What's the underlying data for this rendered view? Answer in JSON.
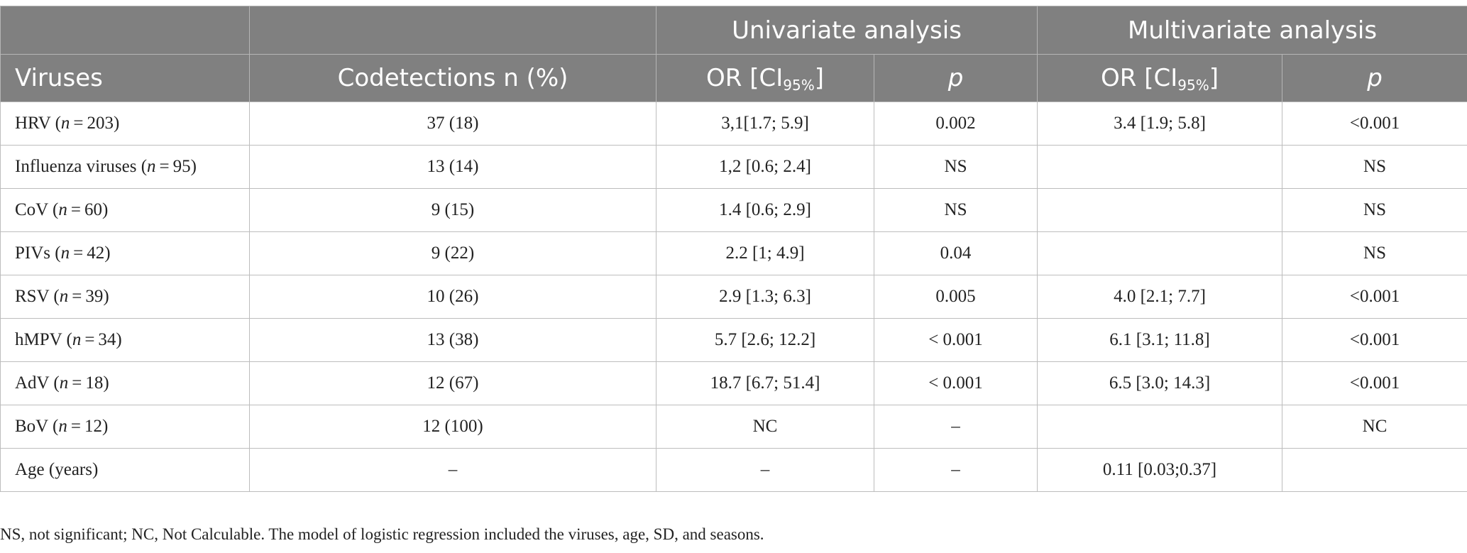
{
  "table": {
    "group_headers": {
      "univariate": "Univariate analysis",
      "multivariate": "Multivariate analysis"
    },
    "column_headers": {
      "viruses": "Viruses",
      "codetections": "Codetections n (%)",
      "or_prefix": "OR [CI",
      "ci_sub": "95%",
      "or_suffix": "]",
      "p": "p"
    },
    "rows": [
      {
        "name": "HRV (",
        "n_var": "n",
        "n_value": " = 203)",
        "codetections": "37 (18)",
        "uni_or": "3,1[1.7; 5.9]",
        "uni_p": "0.002",
        "multi_or": "3.4 [1.9; 5.8]",
        "multi_p": "<0.001"
      },
      {
        "name": "Influenza viruses (",
        "n_var": "n",
        "n_value": " = 95)",
        "codetections": "13 (14)",
        "uni_or": "1,2 [0.6; 2.4]",
        "uni_p": "NS",
        "multi_or": "",
        "multi_p": "NS"
      },
      {
        "name": "CoV (",
        "n_var": "n",
        "n_value": " = 60)",
        "codetections": "9 (15)",
        "uni_or": "1.4 [0.6; 2.9]",
        "uni_p": "NS",
        "multi_or": "",
        "multi_p": "NS"
      },
      {
        "name": "PIVs (",
        "n_var": "n",
        "n_value": " = 42)",
        "codetections": "9 (22)",
        "uni_or": "2.2 [1; 4.9]",
        "uni_p": "0.04",
        "multi_or": "",
        "multi_p": "NS"
      },
      {
        "name": "RSV (",
        "n_var": "n",
        "n_value": " = 39)",
        "codetections": "10 (26)",
        "uni_or": "2.9 [1.3; 6.3]",
        "uni_p": "0.005",
        "multi_or": "4.0 [2.1; 7.7]",
        "multi_p": "<0.001"
      },
      {
        "name": "hMPV (",
        "n_var": "n",
        "n_value": " = 34)",
        "codetections": "13 (38)",
        "uni_or": "5.7 [2.6; 12.2]",
        "uni_p": "< 0.001",
        "multi_or": "6.1 [3.1; 11.8]",
        "multi_p": "<0.001"
      },
      {
        "name": "AdV (",
        "n_var": "n",
        "n_value": " = 18)",
        "codetections": "12 (67)",
        "uni_or": "18.7 [6.7; 51.4]",
        "uni_p": "< 0.001",
        "multi_or": "6.5 [3.0; 14.3]",
        "multi_p": "<0.001"
      },
      {
        "name": "BoV (",
        "n_var": "n",
        "n_value": " = 12)",
        "codetections": "12 (100)",
        "uni_or": "NC",
        "uni_p": "–",
        "multi_or": "",
        "multi_p": "NC"
      },
      {
        "name": "Age (years)",
        "n_var": "",
        "n_value": "",
        "codetections": "–",
        "uni_or": "–",
        "uni_p": "–",
        "multi_or": "0.11 [0.03;0.37]",
        "multi_p": ""
      }
    ]
  },
  "footnote": "NS, not significant; NC, Not Calculable. The model of logistic regression included the viruses, age, SD, and seasons.",
  "colors": {
    "header_bg": "#808080",
    "header_text": "#ffffff",
    "border": "#bdbdbd"
  }
}
